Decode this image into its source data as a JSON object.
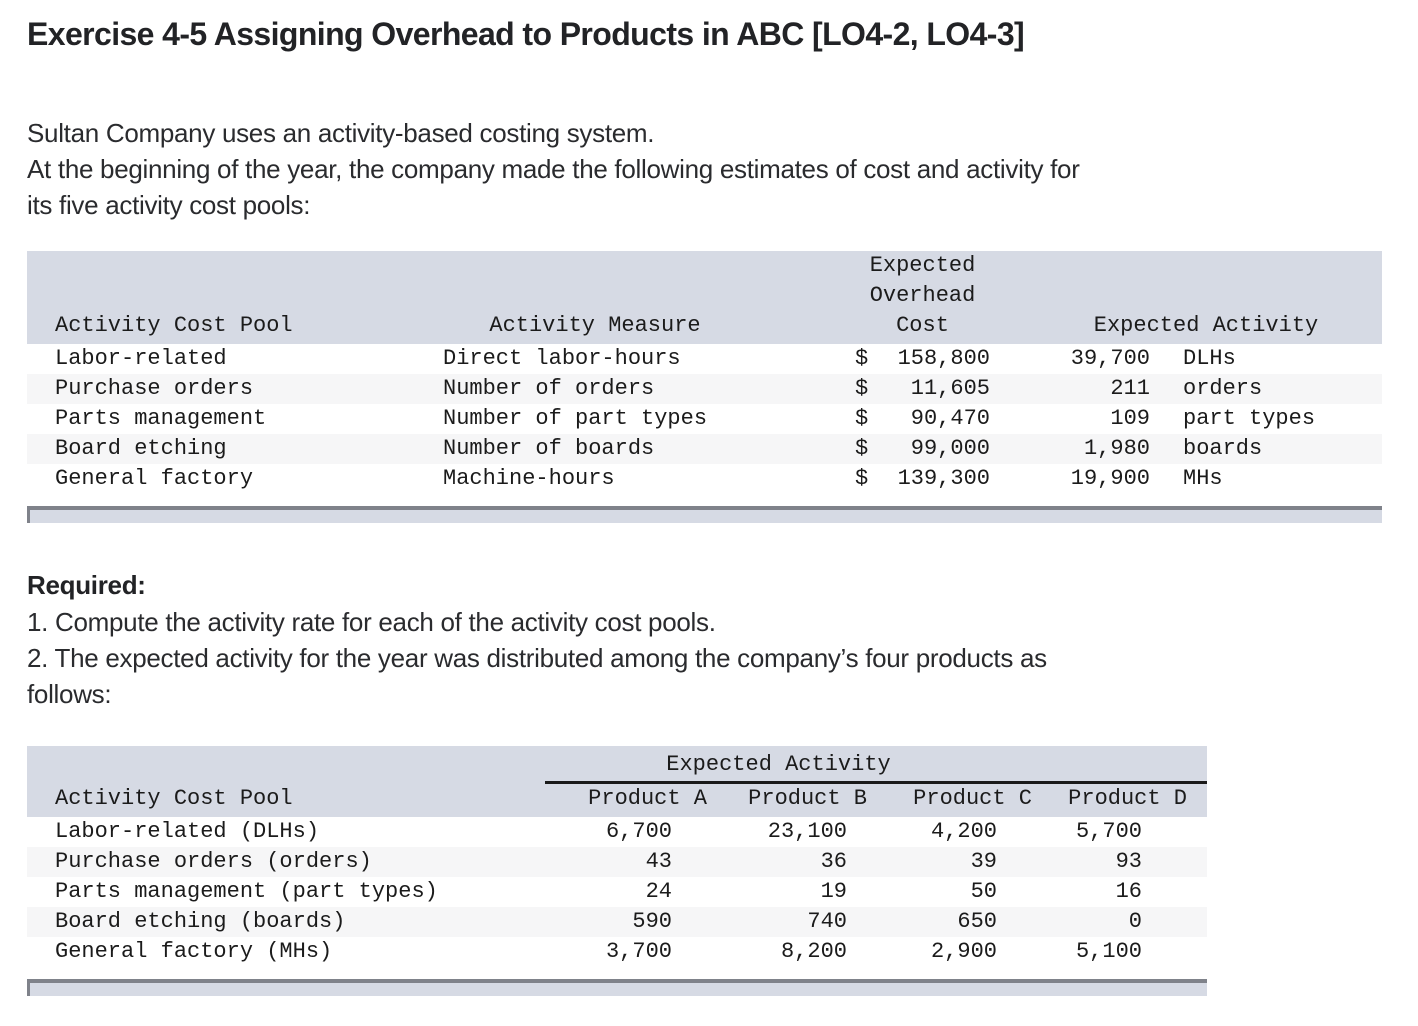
{
  "page": {
    "title": "Exercise 4-5 Assigning Overhead to Products in ABC [LO4-2, LO4-3]",
    "intro_lines": [
      "Sultan Company uses an activity-based costing system.",
      "At the beginning of the year, the company made the following estimates of cost and activity for",
      "its five activity cost pools:"
    ]
  },
  "table1": {
    "headers": {
      "pool": "Activity Cost Pool",
      "measure": "Activity Measure",
      "cost": "Expected\nOverhead\nCost",
      "activity": "Expected Activity"
    },
    "rows": [
      {
        "pool": "Labor-related",
        "measure": "Direct labor-hours",
        "dollar": "$",
        "cost": "158,800",
        "act_num": "39,700",
        "act_unit": "DLHs"
      },
      {
        "pool": "Purchase orders",
        "measure": "Number of orders",
        "dollar": "$",
        "cost": "11,605",
        "act_num": "211",
        "act_unit": "orders"
      },
      {
        "pool": "Parts management",
        "measure": "Number of part types",
        "dollar": "$",
        "cost": "90,470",
        "act_num": "109",
        "act_unit": "part types"
      },
      {
        "pool": "Board etching",
        "measure": "Number of boards",
        "dollar": "$",
        "cost": "99,000",
        "act_num": "1,980",
        "act_unit": "boards"
      },
      {
        "pool": "General factory",
        "measure": "Machine-hours",
        "dollar": "$",
        "cost": "139,300",
        "act_num": "19,900",
        "act_unit": "MHs"
      }
    ]
  },
  "required": {
    "heading": "Required:",
    "item1": "1. Compute the activity rate for each of the activity cost pools.",
    "item2_line1": "2. The expected activity for the year was distributed among the company’s four products as",
    "item2_line2": "follows:"
  },
  "table2": {
    "span_header": "Expected Activity",
    "headers": {
      "pool": "Activity Cost Pool",
      "a": "Product A",
      "b": "Product B",
      "c": "Product C",
      "d": "Product D"
    },
    "rows": [
      {
        "pool": "Labor-related (DLHs)",
        "a": "6,700",
        "b": "23,100",
        "c": "4,200",
        "d": "5,700"
      },
      {
        "pool": "Purchase orders (orders)",
        "a": "43",
        "b": "36",
        "c": "39",
        "d": "93"
      },
      {
        "pool": "Parts management (part types)",
        "a": "24",
        "b": "19",
        "c": "50",
        "d": "16"
      },
      {
        "pool": "Board etching (boards)",
        "a": "590",
        "b": "740",
        "c": "650",
        "d": "0"
      },
      {
        "pool": "General factory (MHs)",
        "a": "3,700",
        "b": "8,200",
        "c": "2,900",
        "d": "5,100"
      }
    ]
  },
  "colors": {
    "header_band": "#d6dae4",
    "row_stripe": "#f6f6f7",
    "text": "#1b1b1b",
    "scrollbar_border": "#7f828a"
  }
}
